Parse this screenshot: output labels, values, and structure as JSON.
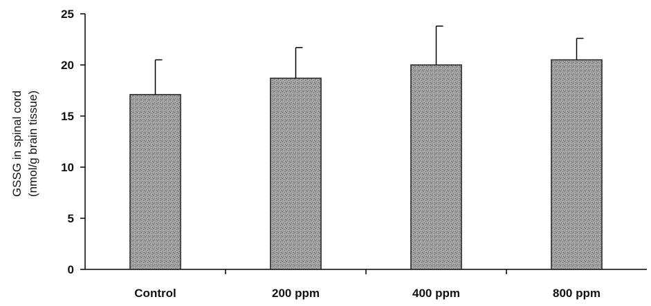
{
  "chart_data": {
    "type": "bar",
    "categories": [
      "Control",
      "200 ppm",
      "400 ppm",
      "800 ppm"
    ],
    "values": [
      17.1,
      18.7,
      20.0,
      20.5
    ],
    "error_upper": [
      20.5,
      21.7,
      23.8,
      22.6
    ],
    "ylabel_line1": "GSSG in spinal cord",
    "ylabel_line2": "(nmol/g brain tissue)",
    "ylim": [
      0,
      25
    ],
    "yticks": [
      "0",
      "5",
      "10",
      "15",
      "20",
      "25"
    ],
    "ytick_values": [
      0,
      5,
      10,
      15,
      20,
      25
    ],
    "grid": false,
    "bar_color": "#9a9a9a"
  }
}
